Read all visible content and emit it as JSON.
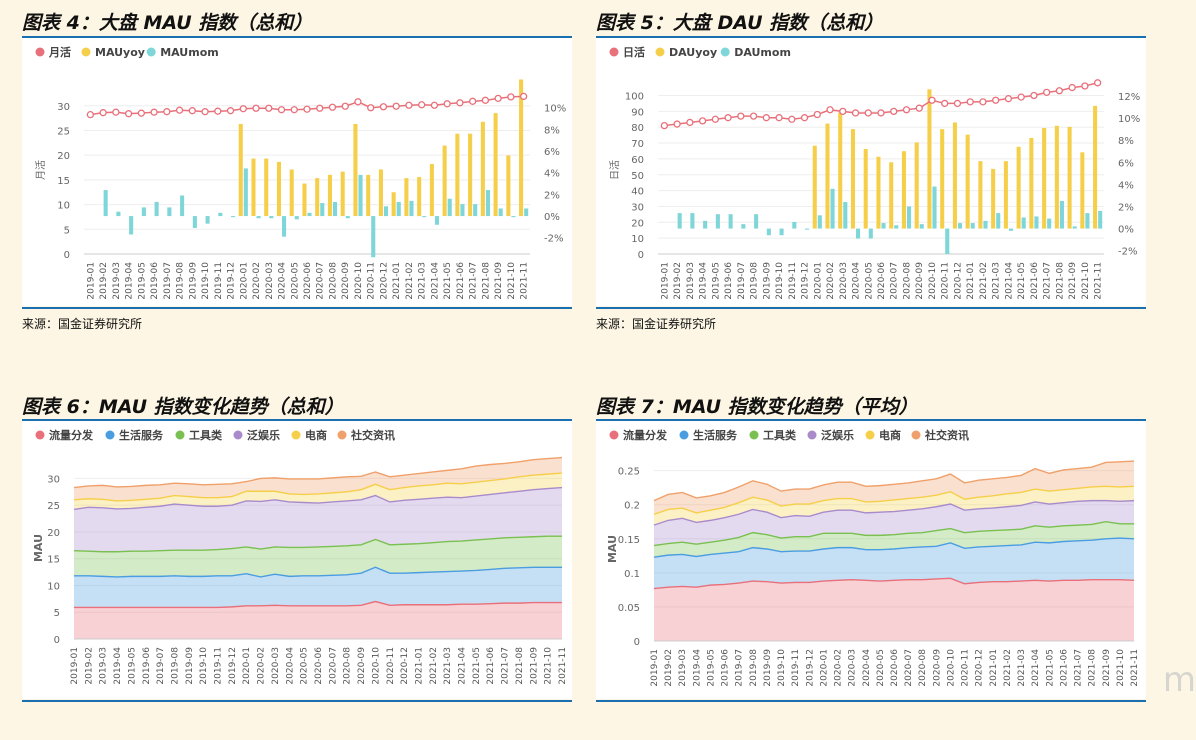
{
  "figures": [
    {
      "title": "图表 4：大盘 MAU 指数（总和）",
      "source": "来源：国金证券研究所"
    },
    {
      "title": "图表 5：大盘 DAU 指数（总和）",
      "source": "来源：国金证券研究所"
    },
    {
      "title": "图表 6：MAU 指数变化趋势（总和）"
    },
    {
      "title": "图表 7：MAU 指数变化趋势（平均）"
    }
  ],
  "watermark": "m",
  "colors": {
    "line": "#e8707a",
    "yoy": "#f6cf4a",
    "mom": "#7fd6d8",
    "c1": "#e8707a",
    "c2": "#4a9de0",
    "c3": "#79c050",
    "c4": "#a98bcc",
    "c5": "#f6cf4a",
    "c6": "#f0a06a"
  },
  "chart_data": [
    {
      "type": "bar",
      "categories": [
        "2019-01",
        "2019-02",
        "2019-03",
        "2019-04",
        "2019-05",
        "2019-06",
        "2019-07",
        "2019-08",
        "2019-09",
        "2019-10",
        "2019-11",
        "2019-12",
        "2020-01",
        "2020-02",
        "2020-03",
        "2020-04",
        "2020-05",
        "2020-06",
        "2020-07",
        "2020-08",
        "2020-09",
        "2020-10",
        "2020-11",
        "2020-12",
        "2021-01",
        "2021-02",
        "2021-03",
        "2021-04",
        "2021-05",
        "2021-06",
        "2021-07",
        "2021-08",
        "2021-09",
        "2021-10",
        "2021-11"
      ],
      "ylabel": "月活",
      "ylim": [
        0,
        34
      ],
      "yticks": [
        0,
        5,
        10,
        15,
        20,
        25,
        30
      ],
      "y2lim": [
        -3.5,
        12
      ],
      "y2ticks": [
        "-2%",
        "0%",
        "2%",
        "4%",
        "6%",
        "8%",
        "10%"
      ],
      "legend": [
        "月活",
        "MAUyoy",
        "MAUmom"
      ],
      "series": [
        {
          "name": "月活",
          "kind": "line",
          "values": [
            28.2,
            28.6,
            28.7,
            28.4,
            28.5,
            28.7,
            28.8,
            29.1,
            29.0,
            28.8,
            28.9,
            29.0,
            29.4,
            29.5,
            29.5,
            29.2,
            29.2,
            29.3,
            29.5,
            29.7,
            29.9,
            30.8,
            29.6,
            29.8,
            29.9,
            30.1,
            30.2,
            30.1,
            30.4,
            30.6,
            30.9,
            31.1,
            31.5,
            31.8,
            31.9
          ]
        },
        {
          "name": "MAUyoy",
          "kind": "bar",
          "axis": "y2",
          "values": [
            null,
            null,
            null,
            null,
            null,
            null,
            null,
            null,
            null,
            null,
            null,
            null,
            8.5,
            5.3,
            5.3,
            5.0,
            4.3,
            3.0,
            3.5,
            3.8,
            4.1,
            8.5,
            3.8,
            4.3,
            2.2,
            3.5,
            3.6,
            4.8,
            6.5,
            7.6,
            7.6,
            8.7,
            9.5,
            5.6,
            12.6
          ]
        },
        {
          "name": "MAUmom",
          "kind": "bar",
          "axis": "y2",
          "values": [
            null,
            2.4,
            0.4,
            -1.7,
            0.8,
            1.3,
            0.8,
            1.9,
            -1.1,
            -0.7,
            0.3,
            -0.1,
            4.4,
            -0.2,
            -0.2,
            -1.9,
            -0.3,
            0.3,
            1.2,
            1.3,
            -0.2,
            3.8,
            -3.8,
            0.9,
            1.3,
            1.4,
            -0.1,
            -0.8,
            1.6,
            1.1,
            1.1,
            2.4,
            0.7,
            -0.1,
            0.7
          ]
        }
      ]
    },
    {
      "type": "bar",
      "categories": [
        "2019-01",
        "2019-02",
        "2019-03",
        "2019-04",
        "2019-05",
        "2019-06",
        "2019-07",
        "2019-08",
        "2019-09",
        "2019-10",
        "2019-11",
        "2019-12",
        "2020-01",
        "2020-02",
        "2020-03",
        "2020-04",
        "2020-05",
        "2020-06",
        "2020-07",
        "2020-08",
        "2020-09",
        "2020-10",
        "2020-11",
        "2020-12",
        "2021-01",
        "2021-02",
        "2021-03",
        "2021-04",
        "2021-05",
        "2021-06",
        "2021-07",
        "2021-08",
        "2021-09",
        "2021-10",
        "2021-11"
      ],
      "ylabel": "日活",
      "ylim": [
        0,
        106
      ],
      "yticks": [
        0,
        10,
        20,
        30,
        40,
        50,
        60,
        70,
        80,
        90,
        100
      ],
      "y2lim": [
        -2.3,
        12.9
      ],
      "y2ticks": [
        "-2%",
        "0%",
        "2%",
        "4%",
        "6%",
        "8%",
        "10%",
        "12%"
      ],
      "legend": [
        "日活",
        "DAUyoy",
        "DAUmom"
      ],
      "series": [
        {
          "name": "日活",
          "kind": "line",
          "values": [
            81,
            82,
            83,
            84,
            85,
            86,
            87,
            87,
            86,
            86,
            85,
            86,
            88,
            91,
            90,
            89,
            89,
            89,
            90,
            91,
            92,
            97,
            95,
            95,
            96,
            96,
            97,
            98,
            99,
            100,
            102,
            103,
            105,
            106,
            108
          ]
        },
        {
          "name": "DAUyoy",
          "kind": "bar",
          "axis": "y2",
          "values": [
            null,
            null,
            null,
            null,
            null,
            null,
            null,
            null,
            null,
            null,
            null,
            null,
            7.5,
            9.5,
            10.5,
            9.0,
            7.2,
            6.5,
            6.0,
            7.0,
            7.8,
            12.6,
            9.0,
            9.6,
            8.5,
            6.1,
            5.4,
            6.1,
            7.4,
            8.2,
            9.1,
            9.3,
            9.2,
            6.9,
            11.1
          ]
        },
        {
          "name": "DAUmom",
          "kind": "bar",
          "axis": "y2",
          "values": [
            null,
            1.4,
            1.4,
            0.7,
            1.3,
            1.3,
            0.4,
            1.3,
            -0.6,
            -0.6,
            0.6,
            -0.1,
            1.2,
            3.6,
            2.4,
            -0.9,
            -0.9,
            0.5,
            0.3,
            2.0,
            0.4,
            3.8,
            -2.3,
            0.5,
            0.5,
            0.7,
            1.4,
            -0.2,
            1.0,
            1.1,
            0.9,
            2.5,
            0.2,
            1.4,
            1.6
          ]
        }
      ]
    },
    {
      "type": "area",
      "stacked": true,
      "ylabel": "MAU",
      "ylim": [
        0,
        34
      ],
      "yticks": [
        0,
        5,
        10,
        15,
        20,
        25,
        30
      ],
      "legend": [
        "流量分发",
        "生活服务",
        "工具类",
        "泛娱乐",
        "电商",
        "社交资讯"
      ],
      "x": [
        "2019-01",
        "2019-02",
        "2019-03",
        "2019-04",
        "2019-05",
        "2019-06",
        "2019-07",
        "2019-08",
        "2019-09",
        "2019-10",
        "2019-11",
        "2019-12",
        "2020-01",
        "2020-02",
        "2020-03",
        "2020-04",
        "2020-05",
        "2020-06",
        "2020-07",
        "2020-08",
        "2020-09",
        "2020-10",
        "2020-11",
        "2020-12",
        "2021-01",
        "2021-02",
        "2021-03",
        "2021-04",
        "2021-05",
        "2021-06",
        "2021-07",
        "2021-08",
        "2021-09",
        "2021-10",
        "2021-11"
      ],
      "series_cumulative_top": [
        {
          "name": "流量分发",
          "values": [
            5.9,
            5.9,
            5.9,
            5.9,
            5.9,
            5.9,
            5.9,
            5.9,
            5.9,
            5.9,
            5.9,
            6.0,
            6.2,
            6.2,
            6.3,
            6.2,
            6.2,
            6.2,
            6.2,
            6.2,
            6.3,
            7.0,
            6.3,
            6.4,
            6.4,
            6.4,
            6.4,
            6.5,
            6.5,
            6.6,
            6.7,
            6.7,
            6.8,
            6.8,
            6.8
          ]
        },
        {
          "name": "生活服务",
          "values": [
            11.8,
            11.8,
            11.7,
            11.6,
            11.7,
            11.7,
            11.7,
            11.8,
            11.7,
            11.7,
            11.8,
            11.8,
            12.2,
            11.6,
            12.1,
            11.7,
            11.8,
            11.8,
            11.9,
            12.0,
            12.3,
            13.4,
            12.3,
            12.3,
            12.4,
            12.5,
            12.6,
            12.7,
            12.8,
            13.0,
            13.2,
            13.3,
            13.4,
            13.4,
            13.4
          ]
        },
        {
          "name": "工具类",
          "values": [
            16.5,
            16.4,
            16.3,
            16.3,
            16.4,
            16.4,
            16.5,
            16.6,
            16.6,
            16.6,
            16.7,
            16.9,
            17.2,
            16.8,
            17.2,
            17.1,
            17.1,
            17.2,
            17.3,
            17.4,
            17.6,
            18.6,
            17.6,
            17.7,
            17.8,
            18.0,
            18.2,
            18.3,
            18.5,
            18.7,
            18.9,
            19.0,
            19.1,
            19.2,
            19.2
          ]
        },
        {
          "name": "泛娱乐",
          "values": [
            24.2,
            24.6,
            24.5,
            24.3,
            24.4,
            24.6,
            24.8,
            25.2,
            25.0,
            24.8,
            24.8,
            25.0,
            25.8,
            25.7,
            26.0,
            25.6,
            25.5,
            25.4,
            25.6,
            25.8,
            26.0,
            26.8,
            25.6,
            25.9,
            26.1,
            26.3,
            26.5,
            26.4,
            26.7,
            27.0,
            27.3,
            27.6,
            27.9,
            28.1,
            28.3
          ]
        },
        {
          "name": "电商",
          "values": [
            26.0,
            26.2,
            26.1,
            25.8,
            25.9,
            26.1,
            26.3,
            26.8,
            26.6,
            26.4,
            26.4,
            26.6,
            27.6,
            27.6,
            27.6,
            27.1,
            27.0,
            27.1,
            27.3,
            27.5,
            27.9,
            28.9,
            27.9,
            28.3,
            28.6,
            28.8,
            29.1,
            29.0,
            29.3,
            29.6,
            29.9,
            30.3,
            30.6,
            30.8,
            31.0
          ]
        },
        {
          "name": "社交资讯",
          "values": [
            28.3,
            28.6,
            28.7,
            28.4,
            28.5,
            28.7,
            28.8,
            29.1,
            29.0,
            28.8,
            28.9,
            29.0,
            29.4,
            30.0,
            30.1,
            29.9,
            29.9,
            29.9,
            30.1,
            30.3,
            30.4,
            31.2,
            30.3,
            30.6,
            30.9,
            31.2,
            31.5,
            31.8,
            32.3,
            32.6,
            32.8,
            33.1,
            33.5,
            33.7,
            33.9
          ]
        }
      ]
    },
    {
      "type": "area",
      "stacked": true,
      "ylabel": "MAU",
      "ylim": [
        0,
        0.27
      ],
      "yticks": [
        "0",
        "0.05",
        "0.1",
        "0.15",
        "0.2",
        "0.25"
      ],
      "legend": [
        "流量分发",
        "生活服务",
        "工具类",
        "泛娱乐",
        "电商",
        "社交资讯"
      ],
      "x": [
        "2019-01",
        "2019-02",
        "2019-03",
        "2019-04",
        "2019-05",
        "2019-06",
        "2019-07",
        "2019-08",
        "2019-09",
        "2019-10",
        "2019-11",
        "2019-12",
        "2020-01",
        "2020-02",
        "2020-03",
        "2020-04",
        "2020-05",
        "2020-06",
        "2020-07",
        "2020-08",
        "2020-09",
        "2020-10",
        "2020-11",
        "2020-12",
        "2021-01",
        "2021-02",
        "2021-03",
        "2021-04",
        "2021-05",
        "2021-06",
        "2021-07",
        "2021-08",
        "2021-09",
        "2021-10",
        "2021-11"
      ],
      "series_cumulative_top": [
        {
          "name": "流量分发",
          "values": [
            0.077,
            0.079,
            0.08,
            0.079,
            0.082,
            0.083,
            0.085,
            0.088,
            0.087,
            0.085,
            0.086,
            0.086,
            0.088,
            0.089,
            0.09,
            0.089,
            0.088,
            0.089,
            0.09,
            0.09,
            0.091,
            0.092,
            0.084,
            0.086,
            0.087,
            0.087,
            0.088,
            0.089,
            0.088,
            0.089,
            0.089,
            0.09,
            0.09,
            0.09,
            0.089
          ]
        },
        {
          "name": "生活服务",
          "values": [
            0.123,
            0.126,
            0.127,
            0.124,
            0.127,
            0.129,
            0.131,
            0.137,
            0.135,
            0.131,
            0.132,
            0.132,
            0.135,
            0.137,
            0.137,
            0.134,
            0.134,
            0.135,
            0.137,
            0.138,
            0.139,
            0.144,
            0.136,
            0.138,
            0.139,
            0.14,
            0.141,
            0.145,
            0.144,
            0.146,
            0.147,
            0.148,
            0.15,
            0.151,
            0.15
          ]
        },
        {
          "name": "工具类",
          "values": [
            0.14,
            0.143,
            0.145,
            0.142,
            0.145,
            0.148,
            0.152,
            0.159,
            0.156,
            0.151,
            0.153,
            0.153,
            0.158,
            0.158,
            0.158,
            0.155,
            0.155,
            0.156,
            0.158,
            0.159,
            0.162,
            0.165,
            0.159,
            0.161,
            0.162,
            0.163,
            0.164,
            0.169,
            0.167,
            0.169,
            0.17,
            0.171,
            0.175,
            0.172,
            0.172
          ]
        },
        {
          "name": "泛娱乐",
          "values": [
            0.17,
            0.177,
            0.18,
            0.174,
            0.177,
            0.181,
            0.186,
            0.193,
            0.189,
            0.181,
            0.184,
            0.183,
            0.189,
            0.192,
            0.192,
            0.188,
            0.189,
            0.19,
            0.192,
            0.194,
            0.197,
            0.201,
            0.192,
            0.194,
            0.195,
            0.197,
            0.199,
            0.204,
            0.201,
            0.203,
            0.205,
            0.206,
            0.206,
            0.205,
            0.206
          ]
        },
        {
          "name": "电商",
          "values": [
            0.186,
            0.193,
            0.195,
            0.188,
            0.192,
            0.196,
            0.203,
            0.211,
            0.207,
            0.198,
            0.201,
            0.201,
            0.206,
            0.209,
            0.209,
            0.204,
            0.205,
            0.207,
            0.209,
            0.211,
            0.214,
            0.219,
            0.208,
            0.211,
            0.213,
            0.216,
            0.218,
            0.223,
            0.22,
            0.222,
            0.224,
            0.226,
            0.227,
            0.226,
            0.227
          ]
        },
        {
          "name": "社交资讯",
          "values": [
            0.206,
            0.215,
            0.218,
            0.21,
            0.213,
            0.218,
            0.226,
            0.235,
            0.23,
            0.22,
            0.223,
            0.223,
            0.229,
            0.233,
            0.233,
            0.227,
            0.228,
            0.23,
            0.232,
            0.235,
            0.238,
            0.245,
            0.232,
            0.236,
            0.238,
            0.24,
            0.243,
            0.253,
            0.246,
            0.251,
            0.253,
            0.255,
            0.262,
            0.263,
            0.264
          ]
        }
      ]
    }
  ]
}
